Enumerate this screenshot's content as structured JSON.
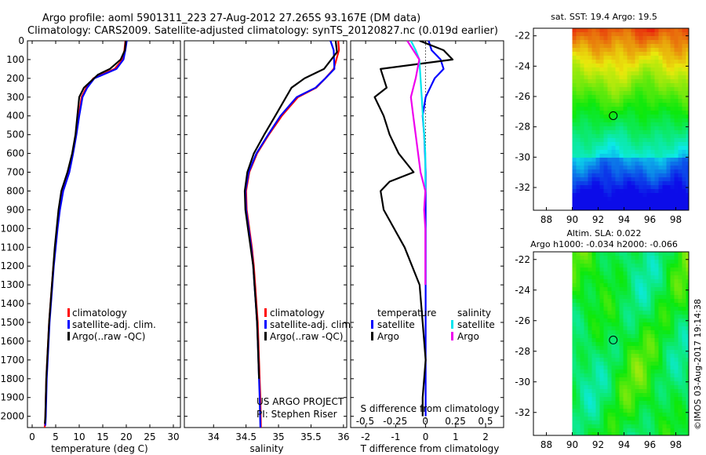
{
  "title": {
    "line1": "Argo profile: aoml 5901311_223 27-Aug-2012 27.265S 93.167E (DM data)",
    "line2": "Climatology: CARS2009. Satellite-adjusted climatology: synTS_20120827.nc (0.019d earlier)"
  },
  "credits": {
    "project": "US ARGO PROJECT",
    "pi": "PI: Stephen Riser",
    "imos_stamp": "©IMOS 03-Aug-2017 19:14:38"
  },
  "colors": {
    "climatology": "#ff0000",
    "satellite_adj": "#0000ff",
    "argo": "#000000",
    "temp_satellite": "#0000ff",
    "sal_satellite": "#00e5ee",
    "sal_argo": "#ee00ee"
  },
  "maps": {
    "sst": {
      "label": "sat. SST: 19.4 Argo: 19.5",
      "xlim": [
        87,
        99
      ],
      "ylim": [
        -33.5,
        -21.5
      ],
      "data_xmin": 90,
      "xticks": [
        "88",
        "90",
        "92",
        "94",
        "96",
        "98"
      ],
      "yticks": [
        "-22",
        "-24",
        "-26",
        "-28",
        "-30",
        "-32"
      ],
      "marker": {
        "lon": 93.167,
        "lat": -27.265
      }
    },
    "sla": {
      "label1": "Altim. SLA: 0.022",
      "label2": "Argo h1000: -0.034 h2000: -0.066",
      "xlim": [
        87,
        99
      ],
      "ylim": [
        -33.5,
        -21.5
      ],
      "data_xmin": 90,
      "xticks": [
        "88",
        "90",
        "92",
        "94",
        "96",
        "98"
      ],
      "yticks": [
        "-22",
        "-24",
        "-26",
        "-28",
        "-30",
        "-32"
      ],
      "marker": {
        "lon": 93.167,
        "lat": -27.265
      }
    }
  },
  "chart_data": [
    {
      "type": "line",
      "xlabel": "temperature (deg C)",
      "xlim": [
        -1,
        31.5
      ],
      "ylim": [
        2060,
        0
      ],
      "y_inverted": true,
      "xticks": [
        0,
        5,
        10,
        15,
        20,
        25,
        30
      ],
      "yticks": [
        0,
        100,
        200,
        300,
        400,
        500,
        600,
        700,
        800,
        900,
        1000,
        1100,
        1200,
        1300,
        1400,
        1500,
        1600,
        1700,
        1800,
        1900,
        2000
      ],
      "legend": [
        "climatology",
        "satellite-adj. clim.",
        "Argo(..raw -QC)"
      ],
      "legend_placement": "lower-right",
      "series": [
        {
          "name": "climatology",
          "color": "#ff0000",
          "x": [
            19.8,
            19.6,
            19.2,
            17.5,
            13.0,
            11.5,
            10.5,
            9.9,
            9.3,
            8.6,
            7.8,
            6.5,
            5.8,
            5.3,
            4.9,
            4.5,
            4.2,
            3.9,
            3.6,
            3.4,
            3.2,
            3.0,
            2.9,
            2.8,
            2.7,
            2.6,
            2.5
          ],
          "y": [
            0,
            50,
            100,
            150,
            200,
            250,
            300,
            400,
            500,
            600,
            700,
            800,
            900,
            1000,
            1100,
            1200,
            1300,
            1400,
            1500,
            1600,
            1700,
            1800,
            1900,
            2000,
            2050,
            2070,
            2080
          ]
        },
        {
          "name": "satellite-adj. clim.",
          "color": "#0000ff",
          "x": [
            20.1,
            19.8,
            19.4,
            17.9,
            13.2,
            11.7,
            10.7,
            10.0,
            9.4,
            8.7,
            7.9,
            6.6,
            5.9,
            5.4,
            5.0,
            4.6,
            4.3,
            4.0,
            3.7,
            3.5,
            3.3,
            3.1,
            3.0,
            2.9,
            2.8
          ],
          "y": [
            0,
            50,
            100,
            150,
            200,
            250,
            300,
            400,
            500,
            600,
            700,
            800,
            900,
            1000,
            1100,
            1200,
            1300,
            1400,
            1500,
            1600,
            1700,
            1800,
            1900,
            2000,
            2050
          ]
        },
        {
          "name": "Argo(..raw -QC)",
          "color": "#000000",
          "x": [
            19.9,
            19.7,
            18.8,
            16.5,
            14.0,
            11.0,
            10.0,
            9.6,
            9.2,
            8.5,
            7.5,
            6.2,
            5.6,
            5.2,
            4.8,
            4.5,
            4.2,
            3.9,
            3.6,
            3.4,
            3.2,
            3.0,
            2.9,
            2.8,
            2.7
          ],
          "y": [
            0,
            50,
            100,
            150,
            180,
            250,
            300,
            400,
            500,
            600,
            700,
            800,
            900,
            1000,
            1100,
            1200,
            1300,
            1400,
            1500,
            1600,
            1700,
            1800,
            1900,
            2000,
            2040
          ]
        }
      ]
    },
    {
      "type": "line",
      "xlabel": "salinity",
      "xlim": [
        33.55,
        36.05
      ],
      "ylim": [
        2060,
        0
      ],
      "y_inverted": true,
      "xticks": [
        34,
        34.5,
        35,
        35.5,
        36
      ],
      "legend": [
        "climatology",
        "satellite-adj. clim.",
        "Argo(..raw -QC)"
      ],
      "legend_placement": "lower-right",
      "series": [
        {
          "name": "climatology",
          "color": "#ff0000",
          "x": [
            35.92,
            35.93,
            35.85,
            35.72,
            35.58,
            35.3,
            35.05,
            34.85,
            34.67,
            34.55,
            34.5,
            34.51,
            34.55,
            34.59,
            34.62,
            34.64,
            34.66,
            34.68,
            34.69,
            34.7,
            34.71,
            34.72,
            34.73
          ],
          "y": [
            0,
            50,
            150,
            200,
            250,
            300,
            400,
            500,
            600,
            700,
            800,
            900,
            1000,
            1100,
            1200,
            1300,
            1400,
            1500,
            1600,
            1700,
            1800,
            1900,
            2070
          ]
        },
        {
          "name": "satellite-adj. clim.",
          "color": "#0000ff",
          "x": [
            35.8,
            35.85,
            35.86,
            35.72,
            35.57,
            35.28,
            35.03,
            34.84,
            34.66,
            34.54,
            34.49,
            34.5,
            34.54,
            34.58,
            34.61,
            34.63,
            34.65,
            34.67,
            34.68,
            34.69,
            34.7,
            34.71,
            34.72
          ],
          "y": [
            0,
            50,
            150,
            200,
            250,
            300,
            400,
            500,
            600,
            700,
            800,
            900,
            1000,
            1100,
            1200,
            1300,
            1400,
            1500,
            1600,
            1700,
            1800,
            1900,
            2060
          ]
        },
        {
          "name": "Argo(..raw -QC)",
          "color": "#000000",
          "x": [
            35.88,
            35.9,
            35.7,
            35.4,
            35.2,
            34.95,
            34.78,
            34.62,
            34.52,
            34.48,
            34.49,
            34.53,
            34.57,
            34.61,
            34.63,
            34.65,
            34.67,
            34.68,
            34.69,
            34.7
          ],
          "y": [
            0,
            60,
            150,
            200,
            250,
            400,
            500,
            600,
            700,
            800,
            900,
            1000,
            1100,
            1200,
            1300,
            1400,
            1500,
            1600,
            1700,
            1800
          ]
        }
      ]
    },
    {
      "type": "line",
      "xlabel": "T difference from climatology",
      "x2label": "S difference from climatology",
      "xlim": [
        -2.5,
        2.6
      ],
      "x2lim": [
        -0.62,
        0.65
      ],
      "ylim": [
        2060,
        0
      ],
      "y_inverted": true,
      "xticks": [
        -2,
        -1,
        0,
        1,
        2
      ],
      "x2ticks": [
        "-0.5",
        "-0.25",
        "0",
        "0.25",
        "0.5"
      ],
      "legend_temperature_header": "temperature",
      "legend_salinity_header": "salinity",
      "legend": [
        "satellite",
        "Argo",
        "satellite",
        "Argo"
      ],
      "legend_placement": "lower-center",
      "series": [
        {
          "name": "temperature satellite",
          "color": "#0000ff",
          "x": [
            0.1,
            0.2,
            0.5,
            0.6,
            0.3,
            0.0,
            -0.1,
            -0.05,
            -0.02,
            0.0,
            0.0,
            0.0,
            0.0,
            0.0,
            0.0
          ],
          "y": [
            0,
            50,
            100,
            150,
            200,
            300,
            400,
            500,
            600,
            700,
            800,
            1000,
            1400,
            1800,
            2000
          ]
        },
        {
          "name": "temperature Argo",
          "color": "#000000",
          "x": [
            -0.2,
            0.6,
            0.9,
            -1.5,
            -1.3,
            -1.7,
            -1.4,
            -1.2,
            -0.9,
            -0.4,
            -1.2,
            -1.5,
            -1.4,
            -0.7,
            -0.2,
            -0.1,
            0.0,
            -0.1,
            -0.1
          ],
          "y": [
            0,
            50,
            100,
            150,
            250,
            300,
            400,
            500,
            600,
            700,
            750,
            800,
            900,
            1100,
            1300,
            1500,
            1700,
            1900,
            2000
          ]
        },
        {
          "name": "salinity satellite",
          "color": "#00e5ee",
          "x": [
            -0.12,
            -0.08,
            -0.05,
            -0.04,
            -0.03,
            -0.02,
            -0.01,
            0.0,
            0.0,
            0.0
          ],
          "y": [
            0,
            50,
            100,
            200,
            300,
            400,
            500,
            600,
            700,
            800
          ]
        },
        {
          "name": "salinity Argo",
          "color": "#ee00ee",
          "x": [
            -0.15,
            -0.05,
            -0.08,
            -0.12,
            -0.1,
            -0.08,
            -0.06,
            -0.04,
            0.0,
            -0.01,
            0.0,
            0.0,
            0.0,
            0.0
          ],
          "y": [
            0,
            100,
            200,
            300,
            400,
            500,
            600,
            700,
            800,
            900,
            1000,
            1100,
            1200,
            1300
          ]
        }
      ]
    }
  ]
}
